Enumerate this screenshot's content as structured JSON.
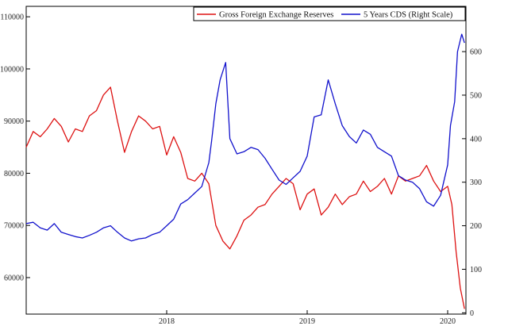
{
  "chart_data": {
    "type": "line",
    "title": "",
    "xlabel": "",
    "ylabel_left": "",
    "ylabel_right": "",
    "xlim": [
      2017.0,
      2020.13
    ],
    "x_ticks": [
      {
        "value": 2018,
        "label": "2018"
      },
      {
        "value": 2019,
        "label": "2019"
      },
      {
        "value": 2020,
        "label": "2020"
      }
    ],
    "y_left": {
      "min": 53000,
      "max": 112000,
      "ticks": [
        60000,
        70000,
        80000,
        90000,
        100000,
        110000
      ],
      "tick_labels": [
        "60000",
        "70000",
        "80000",
        "90000",
        "100000",
        "110000"
      ]
    },
    "y_right": {
      "min": -3,
      "max": 704,
      "ticks": [
        0,
        100,
        200,
        300,
        400,
        500,
        600
      ],
      "tick_labels": [
        "0",
        "100",
        "200",
        "300",
        "400",
        "500",
        "600"
      ]
    },
    "legend_position": "top-right",
    "series": [
      {
        "name": "Gross Foreign Exchange Reserves",
        "color": "#dd1111",
        "axis": "left",
        "x": [
          2017.0,
          2017.05,
          2017.1,
          2017.15,
          2017.2,
          2017.25,
          2017.3,
          2017.35,
          2017.4,
          2017.45,
          2017.5,
          2017.55,
          2017.6,
          2017.65,
          2017.7,
          2017.75,
          2017.8,
          2017.85,
          2017.9,
          2017.95,
          2018.0,
          2018.05,
          2018.1,
          2018.15,
          2018.2,
          2018.25,
          2018.3,
          2018.35,
          2018.4,
          2018.45,
          2018.5,
          2018.55,
          2018.6,
          2018.65,
          2018.7,
          2018.75,
          2018.8,
          2018.85,
          2018.9,
          2018.95,
          2019.0,
          2019.05,
          2019.1,
          2019.15,
          2019.2,
          2019.25,
          2019.3,
          2019.35,
          2019.4,
          2019.45,
          2019.5,
          2019.55,
          2019.6,
          2019.65,
          2019.7,
          2019.75,
          2019.8,
          2019.85,
          2019.9,
          2019.95,
          2020.0,
          2020.03,
          2020.06,
          2020.09,
          2020.12
        ],
        "values": [
          85000,
          88000,
          87000,
          88500,
          90500,
          89000,
          86000,
          88500,
          88000,
          91000,
          92000,
          95000,
          96500,
          90000,
          84000,
          88000,
          91000,
          90000,
          88500,
          89000,
          83500,
          87000,
          84000,
          79000,
          78500,
          80000,
          78000,
          70000,
          67000,
          65500,
          68000,
          71000,
          72000,
          73500,
          74000,
          76000,
          77500,
          79000,
          78000,
          73000,
          76000,
          77000,
          72000,
          73500,
          76000,
          74000,
          75500,
          76000,
          78500,
          76500,
          77500,
          79000,
          76000,
          79500,
          78500,
          79000,
          79500,
          81500,
          78500,
          76500,
          77500,
          74000,
          65000,
          58000,
          54000
        ]
      },
      {
        "name": "5 Years CDS (Right Scale)",
        "color": "#1111cc",
        "axis": "right",
        "x": [
          2017.0,
          2017.05,
          2017.1,
          2017.15,
          2017.2,
          2017.25,
          2017.3,
          2017.35,
          2017.4,
          2017.45,
          2017.5,
          2017.55,
          2017.6,
          2017.65,
          2017.7,
          2017.75,
          2017.8,
          2017.85,
          2017.9,
          2017.95,
          2018.0,
          2018.05,
          2018.1,
          2018.15,
          2018.2,
          2018.25,
          2018.3,
          2018.32,
          2018.35,
          2018.38,
          2018.42,
          2018.45,
          2018.5,
          2018.55,
          2018.6,
          2018.65,
          2018.7,
          2018.75,
          2018.8,
          2018.85,
          2018.9,
          2018.95,
          2019.0,
          2019.05,
          2019.1,
          2019.15,
          2019.2,
          2019.25,
          2019.3,
          2019.35,
          2019.4,
          2019.45,
          2019.5,
          2019.55,
          2019.6,
          2019.65,
          2019.7,
          2019.75,
          2019.8,
          2019.85,
          2019.9,
          2019.95,
          2020.0,
          2020.02,
          2020.05,
          2020.07,
          2020.1,
          2020.12
        ],
        "values": [
          205,
          208,
          195,
          190,
          205,
          185,
          180,
          175,
          172,
          178,
          185,
          195,
          200,
          185,
          172,
          165,
          170,
          172,
          180,
          185,
          200,
          215,
          250,
          260,
          275,
          290,
          345,
          395,
          480,
          535,
          575,
          400,
          365,
          370,
          380,
          375,
          355,
          330,
          305,
          295,
          310,
          325,
          360,
          450,
          455,
          535,
          480,
          430,
          405,
          390,
          420,
          410,
          380,
          370,
          360,
          315,
          305,
          300,
          285,
          255,
          245,
          270,
          340,
          430,
          485,
          600,
          640,
          620
        ]
      }
    ]
  }
}
